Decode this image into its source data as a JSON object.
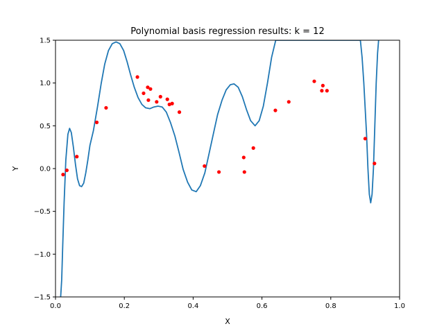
{
  "chart_data": {
    "type": "scatter",
    "title": "Polynomial basis regression results: k = 12",
    "xlabel": "X",
    "ylabel": "Y",
    "xlim": [
      0.0,
      1.0
    ],
    "ylim": [
      -1.5,
      1.5
    ],
    "xticks": [
      "0.0",
      "0.2",
      "0.4",
      "0.6",
      "0.8",
      "1.0"
    ],
    "yticks": [
      "−1.5",
      "−1.0",
      "−0.5",
      "0.0",
      "0.5",
      "1.0",
      "1.5"
    ],
    "grid": false,
    "series": [
      {
        "kind": "scatter",
        "color": "#ff0000",
        "x": [
          0.022,
          0.033,
          0.062,
          0.12,
          0.147,
          0.238,
          0.256,
          0.268,
          0.27,
          0.276,
          0.294,
          0.305,
          0.325,
          0.331,
          0.339,
          0.36,
          0.433,
          0.475,
          0.547,
          0.549,
          0.575,
          0.639,
          0.678,
          0.752,
          0.774,
          0.777,
          0.789,
          0.9,
          0.927
        ],
        "y": [
          -0.07,
          -0.02,
          0.14,
          0.54,
          0.71,
          1.07,
          0.88,
          0.95,
          0.8,
          0.93,
          0.78,
          0.84,
          0.81,
          0.75,
          0.76,
          0.66,
          0.03,
          -0.04,
          0.13,
          -0.04,
          0.24,
          0.68,
          0.78,
          1.02,
          0.91,
          0.97,
          0.91,
          0.35,
          0.06
        ]
      },
      {
        "kind": "line",
        "color": "#1f77b4",
        "x": [
          0.015,
          0.018,
          0.021,
          0.025,
          0.03,
          0.036,
          0.041,
          0.046,
          0.052,
          0.058,
          0.064,
          0.07,
          0.076,
          0.082,
          0.088,
          0.094,
          0.1,
          0.11,
          0.122,
          0.133,
          0.143,
          0.154,
          0.165,
          0.176,
          0.187,
          0.198,
          0.208,
          0.218,
          0.229,
          0.24,
          0.251,
          0.262,
          0.274,
          0.286,
          0.298,
          0.31,
          0.322,
          0.334,
          0.347,
          0.359,
          0.371,
          0.384,
          0.396,
          0.409,
          0.421,
          0.434,
          0.446,
          0.459,
          0.471,
          0.484,
          0.496,
          0.508,
          0.519,
          0.531,
          0.543,
          0.555,
          0.567,
          0.58,
          0.592,
          0.604,
          0.616,
          0.628,
          0.64,
          0.652,
          0.664,
          0.676,
          0.688,
          0.7,
          0.712,
          0.724,
          0.736,
          0.747,
          0.757,
          0.767,
          0.777,
          0.786,
          0.795,
          0.886,
          0.891,
          0.896,
          0.9,
          0.904,
          0.908,
          0.912,
          0.916,
          0.92,
          0.924,
          0.928,
          0.932,
          0.936,
          0.939
        ],
        "y": [
          -1.5,
          -1.3,
          -0.9,
          -0.4,
          0.1,
          0.4,
          0.47,
          0.42,
          0.25,
          0.05,
          -0.12,
          -0.2,
          -0.21,
          -0.17,
          -0.05,
          0.1,
          0.27,
          0.44,
          0.72,
          1.0,
          1.22,
          1.38,
          1.46,
          1.48,
          1.46,
          1.38,
          1.25,
          1.1,
          0.95,
          0.83,
          0.75,
          0.71,
          0.7,
          0.72,
          0.73,
          0.72,
          0.66,
          0.54,
          0.38,
          0.19,
          -0.01,
          -0.16,
          -0.25,
          -0.27,
          -0.2,
          -0.05,
          0.17,
          0.41,
          0.63,
          0.8,
          0.92,
          0.98,
          0.99,
          0.95,
          0.84,
          0.69,
          0.56,
          0.5,
          0.56,
          0.73,
          1.0,
          1.3,
          1.5,
          1.5,
          1.5,
          1.5,
          1.5,
          1.5,
          1.5,
          1.5,
          1.5,
          1.5,
          1.5,
          1.5,
          1.5,
          1.5,
          1.5,
          1.5,
          1.3,
          1.0,
          0.7,
          0.4,
          0.0,
          -0.3,
          -0.4,
          -0.3,
          0.0,
          0.5,
          1.0,
          1.35,
          1.5
        ]
      }
    ]
  }
}
